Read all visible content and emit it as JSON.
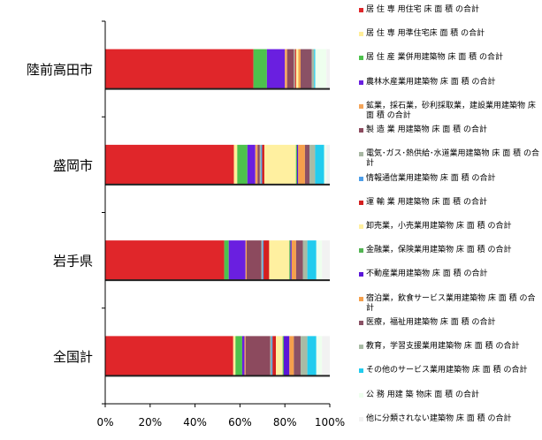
{
  "chart_data": {
    "type": "bar",
    "orientation": "horizontal",
    "stacked": true,
    "percent": true,
    "categories": [
      "陸前高田市",
      "盛岡市",
      "岩手県",
      "全国計"
    ],
    "xlim": [
      0,
      100
    ],
    "xticks": [
      "0%",
      "20%",
      "40%",
      "60%",
      "80%",
      "100%"
    ],
    "grid": false,
    "legend_position": "right",
    "series": [
      {
        "name": "居 住 専 用住宅 床 面 積 の合計",
        "color": "#E0262A",
        "values": [
          66,
          57,
          53,
          57
        ]
      },
      {
        "name": "居 住 専 用準住宅床 面 積 の合計",
        "color": "#FFEE99",
        "values": [
          0,
          1.5,
          0,
          1
        ]
      },
      {
        "name": "居 住 産 業併用建築物 床 面 積 の合計",
        "color": "#4DC24D",
        "values": [
          6,
          4.5,
          2,
          3
        ]
      },
      {
        "name": "農林水産業用建築物 床 面 積 の合計",
        "color": "#6A1FE0",
        "values": [
          8,
          3.5,
          7.5,
          1
        ]
      },
      {
        "name": "鉱業，採石業，砂利採取業，建設業用建築物 床 面 積 の合計",
        "color": "#F4A55A",
        "values": [
          1,
          1,
          0.5,
          0.5
        ]
      },
      {
        "name": "製 造 業 用建築物 床 面 積 の合計",
        "color": "#8C4A5E",
        "values": [
          3,
          1,
          6.5,
          11
        ]
      },
      {
        "name": "電気･ガス･熱供給･水道業用建築物 床 面 積 の合計",
        "color": "#A8B7A3",
        "values": [
          0.5,
          0.5,
          0.5,
          0.5
        ]
      },
      {
        "name": "情報通信業用建築物 床 面 積 の合計",
        "color": "#4D9EE8",
        "values": [
          0,
          0.5,
          0.5,
          0.5
        ]
      },
      {
        "name": "運 輸 業 用建築物 床 面 積 の合計",
        "color": "#D42020",
        "values": [
          0.5,
          1,
          2.5,
          1.5
        ]
      },
      {
        "name": "卸売業，小売業用建築物 床 面 積 の合計",
        "color": "#FFF0A0",
        "values": [
          1,
          14,
          9,
          3
        ]
      },
      {
        "name": "金融業，保険業用建築物 床 面 積 の合計",
        "color": "#53B553",
        "values": [
          0,
          0.5,
          0.5,
          0.5
        ]
      },
      {
        "name": "不動産業用建築物 床 面 積 の合計",
        "color": "#5A16D8",
        "values": [
          0,
          0.5,
          0.5,
          2.5
        ]
      },
      {
        "name": "宿泊業，飲食サービス業用建築物 床 面 積 の合計",
        "color": "#F5A04C",
        "values": [
          1,
          3,
          2,
          2
        ]
      },
      {
        "name": "医療，福祉用建築物 床 面 積 の合計",
        "color": "#8A5165",
        "values": [
          5,
          2,
          3,
          3
        ]
      },
      {
        "name": "教育，学習支援業用建築物 床 面 積 の合計",
        "color": "#A9BBA5",
        "values": [
          1,
          2.5,
          2,
          3
        ]
      },
      {
        "name": "その他のサービス業用建築物 床 面 積 の合計",
        "color": "#22CCEE",
        "values": [
          0.5,
          4,
          4,
          4
        ]
      },
      {
        "name": "公 務 用建 築 物床 面 積 の合計",
        "color": "#EEFFEE",
        "values": [
          5,
          1,
          2.5,
          2.5
        ]
      },
      {
        "name": "他に分類されない建築物 床 面 積 の合計",
        "color": "#F2F2F2",
        "values": [
          1.5,
          1.5,
          3.5,
          3.5
        ]
      }
    ]
  }
}
